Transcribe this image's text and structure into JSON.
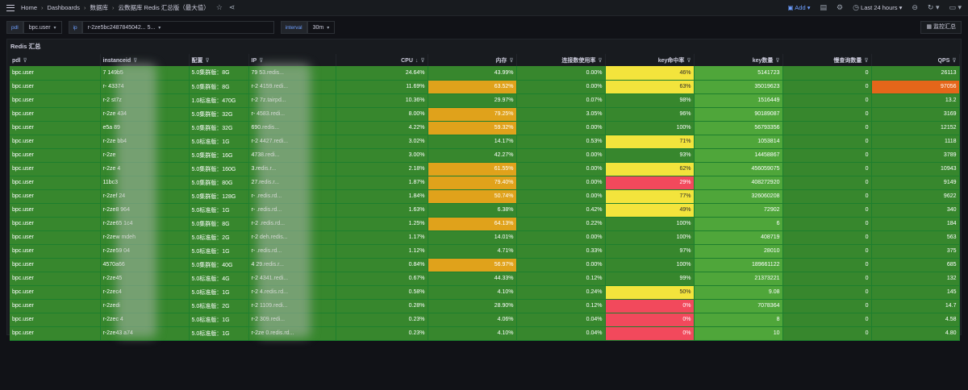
{
  "nav": {
    "breadcrumb": [
      "Home",
      "Dashboards",
      "数据库",
      "云数据库 Redis 汇总版（最大值）"
    ],
    "add_label": "Add",
    "time_range": "Last 24 hours"
  },
  "variables": {
    "pdl_label": "pdl",
    "pdl_value": "bpc.user",
    "ip_label": "ip",
    "ip_value": "r-2ze5bc2487845042...              5...",
    "interval_label": "interval",
    "interval_value": "30m",
    "summary_button": "监控汇总"
  },
  "panel": {
    "title": "Redis 汇总",
    "columns": [
      "pdl",
      "instanceid",
      "配置",
      "IP",
      "CPU",
      "内存",
      "连接数使用率",
      "key命中率",
      "key数量",
      "慢查询数量",
      "QPS"
    ],
    "rows": [
      {
        "pdl": "bpc.user",
        "instanceid": "7              149b5",
        "config": "5.0集群版：8G",
        "ip": "79                   53.redis...",
        "cpu": "24.64%",
        "mem": "43.99%",
        "conn": "0.00%",
        "hit": "46%",
        "keys": "5141723",
        "slow": "0",
        "qps": "26113"
      },
      {
        "pdl": "bpc.user",
        "instanceid": "r-             43374",
        "config": "5.0集群版：8G",
        "ip": "r-2                 4159.redi...",
        "cpu": "11.69%",
        "mem": "63.52%",
        "conn": "0.00%",
        "hit": "63%",
        "keys": "35019623",
        "slow": "0",
        "qps": "97056"
      },
      {
        "pdl": "bpc.user",
        "instanceid": "r-2             st7z",
        "config": "1.0标准版：470G",
        "ip": "r-2               7z.tairpd...",
        "cpu": "10.36%",
        "mem": "29.97%",
        "conn": "0.07%",
        "hit": "98%",
        "keys": "1516449",
        "slow": "0",
        "qps": "13.2"
      },
      {
        "pdl": "bpc.user",
        "instanceid": "r-2ze          434",
        "config": "5.0集群版：32G",
        "ip": "r-               4583.redi...",
        "cpu": "8.00%",
        "mem": "79.25%",
        "conn": "3.05%",
        "hit": "96%",
        "keys": "90189087",
        "slow": "0",
        "qps": "3169"
      },
      {
        "pdl": "bpc.user",
        "instanceid": "e5a            89",
        "config": "5.0集群版：32G",
        "ip": "                 690.redis...",
        "cpu": "4.22%",
        "mem": "59.32%",
        "conn": "0.00%",
        "hit": "100%",
        "keys": "56793356",
        "slow": "0",
        "qps": "12152"
      },
      {
        "pdl": "bpc.user",
        "instanceid": "r-2ze          bb4",
        "config": "5.0标准版：1G",
        "ip": "r-2               4427.redi...",
        "cpu": "3.02%",
        "mem": "14.17%",
        "conn": "0.53%",
        "hit": "71%",
        "keys": "1053814",
        "slow": "0",
        "qps": "1118"
      },
      {
        "pdl": "bpc.user",
        "instanceid": "r-2ze",
        "config": "5.0集群版：16G",
        "ip": "                  4738.redi...",
        "cpu": "3.00%",
        "mem": "42.27%",
        "conn": "0.00%",
        "hit": "93%",
        "keys": "14458867",
        "slow": "0",
        "qps": "3789"
      },
      {
        "pdl": "bpc.user",
        "instanceid": "r-2ze              4",
        "config": "5.0集群版：160G",
        "ip": "                  3.redis.r...",
        "cpu": "2.18%",
        "mem": "61.55%",
        "conn": "0.00%",
        "hit": "62%",
        "keys": "456059075",
        "slow": "0",
        "qps": "10943"
      },
      {
        "pdl": "bpc.user",
        "instanceid": "11bc3",
        "config": "5.0集群版：80G",
        "ip": "                  27.redis.r...",
        "cpu": "1.87%",
        "mem": "79.40%",
        "conn": "0.00%",
        "hit": "29%",
        "keys": "408272920",
        "slow": "0",
        "qps": "9149"
      },
      {
        "pdl": "bpc.user",
        "instanceid": "r-2zef          24",
        "config": "5.0集群版：128G",
        "ip": "r-                .redis.rd...",
        "cpu": "1.84%",
        "mem": "50.74%",
        "conn": "0.00%",
        "hit": "77%",
        "keys": "326060208",
        "slow": "0",
        "qps": "9622"
      },
      {
        "pdl": "bpc.user",
        "instanceid": "r-2ze8          964",
        "config": "5.0标准版：1G",
        "ip": "r-               .redis.rd...",
        "cpu": "1.63%",
        "mem": "6.38%",
        "conn": "0.42%",
        "hit": "49%",
        "keys": "72902",
        "slow": "0",
        "qps": "340"
      },
      {
        "pdl": "bpc.user",
        "instanceid": "r-2ze65          1c4",
        "config": "5.0集群版：8G",
        "ip": "r-2               .redis.rd...",
        "cpu": "1.25%",
        "mem": "64.13%",
        "conn": "0.22%",
        "hit": "100%",
        "keys": "6",
        "slow": "0",
        "qps": "184"
      },
      {
        "pdl": "bpc.user",
        "instanceid": "r-2zew          mdeh",
        "config": "5.0标准版：2G",
        "ip": "r-2               deh.redis...",
        "cpu": "1.17%",
        "mem": "14.01%",
        "conn": "0.00%",
        "hit": "100%",
        "keys": "408719",
        "slow": "0",
        "qps": "563"
      },
      {
        "pdl": "bpc.user",
        "instanceid": "r-2ze59          04",
        "config": "5.0标准版：1G",
        "ip": "r-                 .redis.rd...",
        "cpu": "1.12%",
        "mem": "4.71%",
        "conn": "0.33%",
        "hit": "97%",
        "keys": "28010",
        "slow": "0",
        "qps": "375"
      },
      {
        "pdl": "bpc.user",
        "instanceid": "4570a66",
        "config": "5.0集群版：40G",
        "ip": "4                 29.redis.r...",
        "cpu": "0.84%",
        "mem": "56.97%",
        "conn": "0.00%",
        "hit": "100%",
        "keys": "189661122",
        "slow": "0",
        "qps": "685"
      },
      {
        "pdl": "bpc.user",
        "instanceid": "r-2ze45",
        "config": "5.0标准版：4G",
        "ip": "r-2               4341.redi...",
        "cpu": "0.67%",
        "mem": "44.33%",
        "conn": "0.12%",
        "hit": "99%",
        "keys": "21373221",
        "slow": "0",
        "qps": "132"
      },
      {
        "pdl": "bpc.user",
        "instanceid": "r-2zec4",
        "config": "5.0标准版：1G",
        "ip": "r-2               4.redis.rd...",
        "cpu": "0.58%",
        "mem": "4.10%",
        "conn": "0.24%",
        "hit": "50%",
        "keys": "9.08",
        "slow": "0",
        "qps": "145"
      },
      {
        "pdl": "bpc.user",
        "instanceid": "r-2zedi",
        "config": "5.0标准版：2G",
        "ip": "r-2               1109.redi...",
        "cpu": "0.28%",
        "mem": "28.90%",
        "conn": "0.12%",
        "hit": "0%",
        "keys": "7078364",
        "slow": "0",
        "qps": "14.7"
      },
      {
        "pdl": "bpc.user",
        "instanceid": "r-2zec          4",
        "config": "5.0标准版：1G",
        "ip": "r-2               309.redi...",
        "cpu": "0.23%",
        "mem": "4.06%",
        "conn": "0.04%",
        "hit": "0%",
        "keys": "8",
        "slow": "0",
        "qps": "4.58"
      },
      {
        "pdl": "bpc.user",
        "instanceid": "r-2ze43          a74",
        "config": "5.0标准版：1G",
        "ip": "r-2ze             0.redis.rd...",
        "cpu": "0.23%",
        "mem": "4.10%",
        "conn": "0.04%",
        "hit": "0%",
        "keys": "10",
        "slow": "0",
        "qps": "4.80"
      }
    ]
  },
  "colors": {
    "green": "#37872d",
    "orange": "#e0a21b",
    "yellow": "#f3e43c",
    "red": "#f2495c",
    "deep_orange": "#e5661a"
  }
}
